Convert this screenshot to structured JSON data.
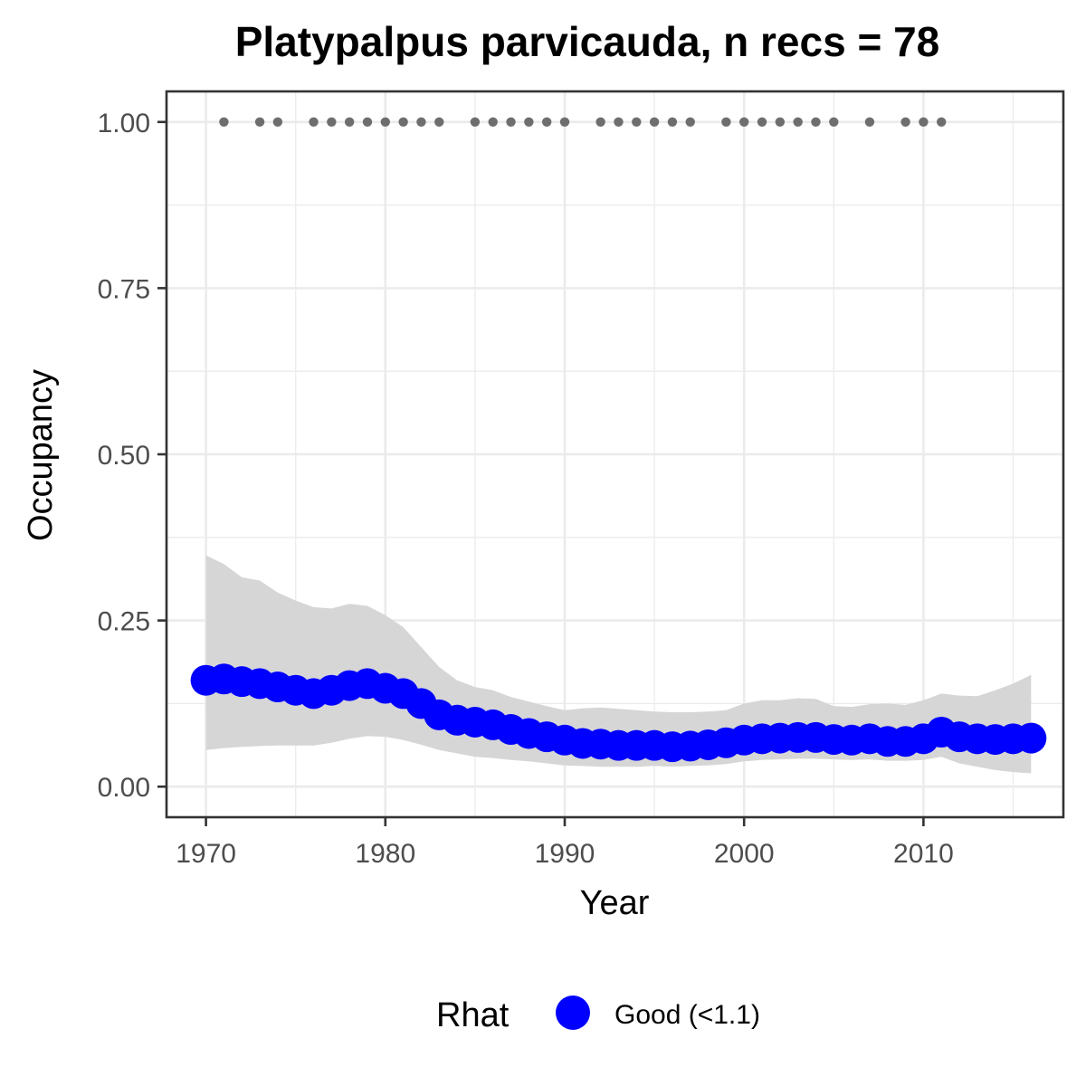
{
  "chart_data": {
    "type": "line",
    "title": "Platypalpus parvicauda, n recs = 78",
    "xlabel": "Year",
    "ylabel": "Occupancy",
    "xlim": [
      1967.8,
      2017.8
    ],
    "ylim": [
      -0.046,
      1.046
    ],
    "x_ticks": [
      1970,
      1980,
      1990,
      2000,
      2010
    ],
    "x_tick_labels": [
      "1970",
      "1980",
      "1990",
      "2000",
      "2010"
    ],
    "y_ticks": [
      0,
      0.25,
      0.5,
      0.75,
      1.0
    ],
    "y_tick_labels": [
      "0.00",
      "0.25",
      "0.50",
      "0.75",
      "1.00"
    ],
    "grid": true,
    "legend_position": "bottom",
    "legend": {
      "title": "Rhat",
      "entries": [
        {
          "label": "Good (<1.1)",
          "color": "#0000ff"
        }
      ]
    },
    "colors": {
      "mean": "#0000ff",
      "ribbon": "#d6d6d6",
      "records": "#6e6e6e",
      "grid": "#ebebeb",
      "panel_border": "#333333"
    },
    "series": [
      {
        "name": "Good (<1.1)",
        "x": [
          1970,
          1971,
          1972,
          1973,
          1974,
          1975,
          1976,
          1977,
          1978,
          1979,
          1980,
          1981,
          1982,
          1983,
          1984,
          1985,
          1986,
          1987,
          1988,
          1989,
          1990,
          1991,
          1992,
          1993,
          1994,
          1995,
          1996,
          1997,
          1998,
          1999,
          2000,
          2001,
          2002,
          2003,
          2004,
          2005,
          2006,
          2007,
          2008,
          2009,
          2010,
          2011,
          2012,
          2013,
          2014,
          2015,
          2016
        ],
        "mean": [
          0.16,
          0.162,
          0.158,
          0.155,
          0.15,
          0.145,
          0.14,
          0.145,
          0.152,
          0.155,
          0.148,
          0.14,
          0.125,
          0.108,
          0.1,
          0.097,
          0.093,
          0.086,
          0.08,
          0.075,
          0.07,
          0.065,
          0.064,
          0.062,
          0.062,
          0.062,
          0.06,
          0.061,
          0.063,
          0.066,
          0.07,
          0.072,
          0.073,
          0.074,
          0.074,
          0.071,
          0.07,
          0.072,
          0.068,
          0.068,
          0.072,
          0.082,
          0.075,
          0.072,
          0.071,
          0.072,
          0.073
        ],
        "lower": [
          0.055,
          0.058,
          0.06,
          0.061,
          0.062,
          0.062,
          0.062,
          0.066,
          0.072,
          0.076,
          0.075,
          0.07,
          0.063,
          0.055,
          0.05,
          0.045,
          0.043,
          0.04,
          0.038,
          0.035,
          0.032,
          0.031,
          0.03,
          0.03,
          0.03,
          0.031,
          0.03,
          0.031,
          0.032,
          0.034,
          0.038,
          0.04,
          0.041,
          0.042,
          0.042,
          0.041,
          0.04,
          0.041,
          0.039,
          0.039,
          0.04,
          0.045,
          0.035,
          0.03,
          0.025,
          0.022,
          0.02
        ],
        "upper": [
          0.348,
          0.335,
          0.315,
          0.31,
          0.292,
          0.28,
          0.27,
          0.268,
          0.275,
          0.272,
          0.258,
          0.24,
          0.21,
          0.18,
          0.16,
          0.15,
          0.145,
          0.135,
          0.128,
          0.121,
          0.115,
          0.118,
          0.119,
          0.117,
          0.115,
          0.113,
          0.112,
          0.112,
          0.113,
          0.115,
          0.125,
          0.13,
          0.13,
          0.133,
          0.132,
          0.121,
          0.12,
          0.124,
          0.125,
          0.123,
          0.13,
          0.14,
          0.137,
          0.136,
          0.145,
          0.155,
          0.168
        ]
      }
    ],
    "records": {
      "y": 1.0,
      "x": [
        1971,
        1973,
        1974,
        1976,
        1977,
        1978,
        1979,
        1980,
        1981,
        1982,
        1983,
        1985,
        1986,
        1987,
        1988,
        1989,
        1990,
        1992,
        1993,
        1994,
        1995,
        1996,
        1997,
        1999,
        2000,
        2001,
        2002,
        2003,
        2004,
        2005,
        2007,
        2009,
        2010,
        2011
      ]
    }
  }
}
